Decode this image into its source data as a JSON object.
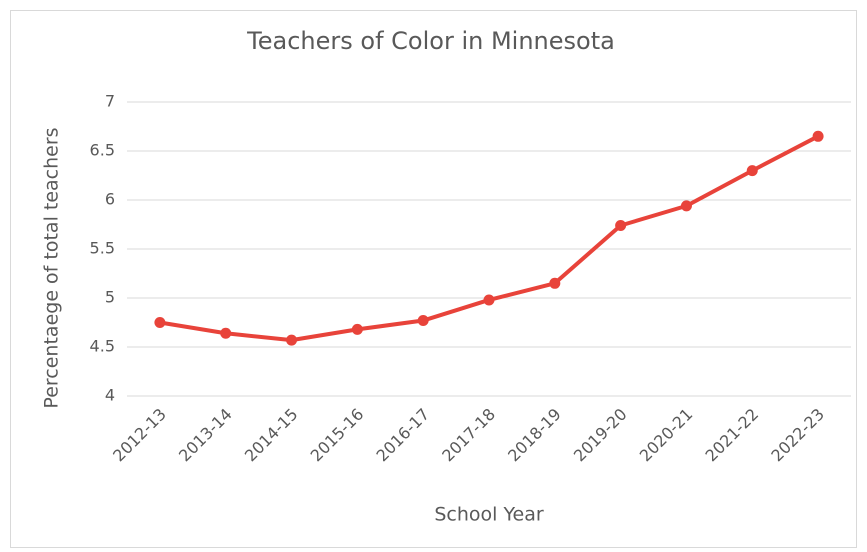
{
  "chart_data": {
    "type": "line",
    "title": "Teachers of Color in Minnesota",
    "x_label": "School Year",
    "y_label": "Percentaege of total teachers",
    "categories": [
      "2012-13",
      "2013-14",
      "2014-15",
      "2015-16",
      "2016-17",
      "2017-18",
      "2018-19",
      "2019-20",
      "2020-21",
      "2021-22",
      "2022-23"
    ],
    "series": [
      {
        "name": "Teachers of Color",
        "color": "#e8433a",
        "values": [
          4.75,
          4.64,
          4.57,
          4.68,
          4.77,
          4.98,
          5.15,
          5.74,
          5.94,
          6.3,
          6.65
        ]
      }
    ],
    "ylim": [
      4,
      7
    ],
    "yticks": [
      4,
      4.5,
      5,
      5.5,
      6,
      6.5,
      7
    ],
    "grid": true
  }
}
